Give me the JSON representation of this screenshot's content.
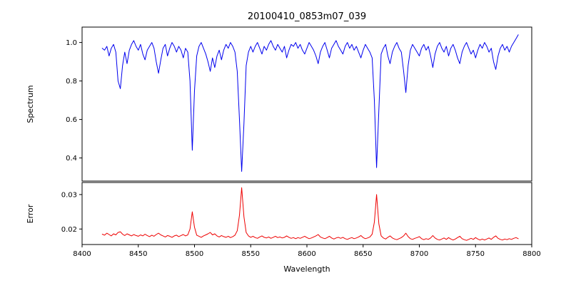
{
  "title": "20100410_0853m07_039",
  "xlabel": "Wavelength",
  "chart_data": [
    {
      "type": "line",
      "name": "spectrum",
      "color": "#0000ee",
      "ylabel": "Spectrum",
      "xlim": [
        8400,
        8800
      ],
      "ylim": [
        0.28,
        1.08
      ],
      "ytick_values": [
        0.4,
        0.6,
        0.8,
        1.0
      ],
      "ytick_labels": [
        "0.4",
        "0.6",
        "0.8",
        "1.0"
      ],
      "xtick_values": [
        8400,
        8450,
        8500,
        8550,
        8600,
        8650,
        8700,
        8750,
        8800
      ],
      "xtick_labels": [
        "8400",
        "8450",
        "8500",
        "8550",
        "8600",
        "8650",
        "8700",
        "8750",
        "8800"
      ],
      "x_start": 8418,
      "x_step": 2,
      "y": [
        0.97,
        0.96,
        0.98,
        0.93,
        0.97,
        0.99,
        0.95,
        0.8,
        0.76,
        0.88,
        0.95,
        0.89,
        0.96,
        0.99,
        1.01,
        0.98,
        0.96,
        0.99,
        0.94,
        0.91,
        0.96,
        0.98,
        1.0,
        0.97,
        0.9,
        0.84,
        0.91,
        0.97,
        0.99,
        0.93,
        0.97,
        1.0,
        0.98,
        0.95,
        0.98,
        0.96,
        0.92,
        0.97,
        0.95,
        0.8,
        0.44,
        0.75,
        0.93,
        0.98,
        1.0,
        0.97,
        0.94,
        0.9,
        0.85,
        0.92,
        0.87,
        0.93,
        0.96,
        0.91,
        0.96,
        0.99,
        0.97,
        1.0,
        0.98,
        0.95,
        0.85,
        0.6,
        0.33,
        0.58,
        0.88,
        0.95,
        0.98,
        0.95,
        0.98,
        1.0,
        0.97,
        0.94,
        0.98,
        0.96,
        0.99,
        1.01,
        0.98,
        0.96,
        0.99,
        0.97,
        0.95,
        0.98,
        0.92,
        0.96,
        0.99,
        0.98,
        1.0,
        0.97,
        0.99,
        0.96,
        0.94,
        0.97,
        1.0,
        0.98,
        0.96,
        0.93,
        0.89,
        0.95,
        0.98,
        1.0,
        0.96,
        0.92,
        0.97,
        0.99,
        1.01,
        0.98,
        0.96,
        0.94,
        0.98,
        1.0,
        0.97,
        0.99,
        0.96,
        0.98,
        0.95,
        0.92,
        0.96,
        0.99,
        0.97,
        0.95,
        0.92,
        0.7,
        0.35,
        0.65,
        0.94,
        0.97,
        0.99,
        0.93,
        0.89,
        0.95,
        0.98,
        1.0,
        0.97,
        0.95,
        0.85,
        0.74,
        0.88,
        0.96,
        0.99,
        0.97,
        0.95,
        0.93,
        0.97,
        0.99,
        0.96,
        0.98,
        0.93,
        0.87,
        0.94,
        0.98,
        1.0,
        0.97,
        0.95,
        0.98,
        0.93,
        0.97,
        0.99,
        0.96,
        0.92,
        0.89,
        0.95,
        0.98,
        1.0,
        0.97,
        0.94,
        0.96,
        0.92,
        0.96,
        0.99,
        0.97,
        1.0,
        0.98,
        0.95,
        0.97,
        0.9,
        0.86,
        0.93,
        0.97,
        0.99,
        0.96,
        0.98,
        0.95,
        0.98,
        1.0,
        1.02,
        1.04
      ]
    },
    {
      "type": "line",
      "name": "error",
      "color": "#ee0000",
      "ylabel": "Error",
      "xlim": [
        8400,
        8800
      ],
      "ylim": [
        0.0155,
        0.0335
      ],
      "ytick_values": [
        0.02,
        0.03
      ],
      "ytick_labels": [
        "0.02",
        "0.03"
      ],
      "xtick_values": [
        8400,
        8450,
        8500,
        8550,
        8600,
        8650,
        8700,
        8750,
        8800
      ],
      "xtick_labels": [
        "8400",
        "8450",
        "8500",
        "8550",
        "8600",
        "8650",
        "8700",
        "8750",
        "8800"
      ],
      "x_start": 8418,
      "x_step": 2,
      "y": [
        0.0185,
        0.0182,
        0.0188,
        0.0184,
        0.018,
        0.0186,
        0.0183,
        0.019,
        0.0192,
        0.0185,
        0.0181,
        0.0186,
        0.0183,
        0.018,
        0.0184,
        0.0181,
        0.0179,
        0.0183,
        0.018,
        0.0185,
        0.0181,
        0.0178,
        0.0182,
        0.0179,
        0.0184,
        0.0188,
        0.0183,
        0.018,
        0.0177,
        0.0181,
        0.0179,
        0.0176,
        0.018,
        0.0182,
        0.0178,
        0.0181,
        0.0184,
        0.018,
        0.0183,
        0.02,
        0.025,
        0.0205,
        0.0182,
        0.0179,
        0.0176,
        0.018,
        0.0183,
        0.0186,
        0.019,
        0.0183,
        0.0186,
        0.018,
        0.0177,
        0.0181,
        0.0178,
        0.0176,
        0.0179,
        0.0175,
        0.0178,
        0.0182,
        0.0195,
        0.024,
        0.032,
        0.0235,
        0.019,
        0.018,
        0.0176,
        0.0179,
        0.0175,
        0.0173,
        0.0177,
        0.018,
        0.0176,
        0.0174,
        0.0177,
        0.0173,
        0.0176,
        0.0179,
        0.0175,
        0.0177,
        0.0174,
        0.0176,
        0.018,
        0.0176,
        0.0173,
        0.0175,
        0.0172,
        0.0175,
        0.0173,
        0.0176,
        0.0179,
        0.0175,
        0.0172,
        0.0174,
        0.0177,
        0.018,
        0.0184,
        0.0177,
        0.0174,
        0.0172,
        0.0175,
        0.0179,
        0.0174,
        0.0171,
        0.0174,
        0.0176,
        0.0173,
        0.0176,
        0.0172,
        0.017,
        0.0173,
        0.0175,
        0.0172,
        0.0174,
        0.0177,
        0.0181,
        0.0175,
        0.0172,
        0.0174,
        0.0177,
        0.0185,
        0.022,
        0.03,
        0.0215,
        0.018,
        0.0174,
        0.0171,
        0.0176,
        0.018,
        0.0174,
        0.0171,
        0.0169,
        0.0172,
        0.0175,
        0.018,
        0.0188,
        0.0178,
        0.0172,
        0.017,
        0.0173,
        0.0175,
        0.0178,
        0.0172,
        0.0169,
        0.0172,
        0.017,
        0.0174,
        0.0181,
        0.0174,
        0.017,
        0.0168,
        0.0171,
        0.0174,
        0.017,
        0.0175,
        0.0171,
        0.0168,
        0.0171,
        0.0175,
        0.0179,
        0.0172,
        0.0169,
        0.0167,
        0.017,
        0.0173,
        0.017,
        0.0175,
        0.0171,
        0.0168,
        0.0171,
        0.0168,
        0.0171,
        0.0174,
        0.017,
        0.0176,
        0.018,
        0.0173,
        0.017,
        0.0168,
        0.0171,
        0.0169,
        0.0172,
        0.017,
        0.0173,
        0.0175,
        0.0172
      ]
    }
  ]
}
